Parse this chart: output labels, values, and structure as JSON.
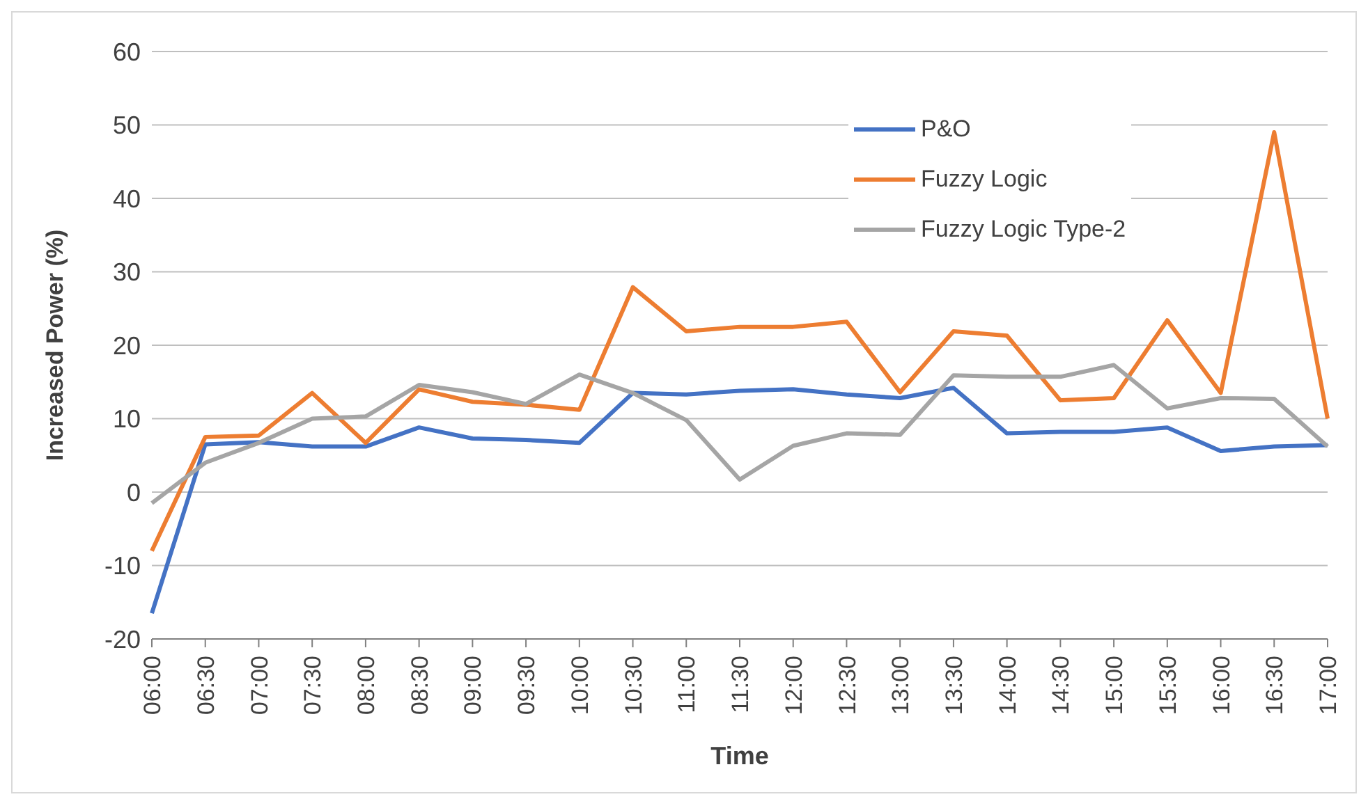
{
  "chart_data": {
    "type": "line",
    "xlabel": "Time",
    "ylabel": "Increased Power (%)",
    "categories": [
      "06:00",
      "06:30",
      "07:00",
      "07:30",
      "08:00",
      "08:30",
      "09:00",
      "09:30",
      "10:00",
      "10:30",
      "11:00",
      "11:30",
      "12:00",
      "12:30",
      "13:00",
      "13:30",
      "14:00",
      "14:30",
      "15:00",
      "15:30",
      "16:00",
      "16:30",
      "17:00"
    ],
    "series": [
      {
        "name": "P&O",
        "color": "#4472c4",
        "values": [
          -16.5,
          6.5,
          6.8,
          6.2,
          6.2,
          8.8,
          7.3,
          7.1,
          6.7,
          13.5,
          13.3,
          13.8,
          14,
          13.3,
          12.8,
          14.2,
          8,
          8.2,
          8.2,
          8.8,
          5.6,
          6.2,
          6.4
        ]
      },
      {
        "name": "Fuzzy Logic",
        "color": "#ed7d31",
        "values": [
          -8,
          7.5,
          7.7,
          13.5,
          6.7,
          14,
          12.3,
          11.9,
          11.2,
          27.9,
          21.9,
          22.5,
          22.5,
          23.2,
          13.6,
          21.9,
          21.3,
          12.5,
          12.8,
          23.4,
          13.5,
          49,
          10
        ]
      },
      {
        "name": "Fuzzy Logic Type-2",
        "color": "#a5a5a5",
        "values": [
          -1.5,
          4,
          6.7,
          10,
          10.3,
          14.6,
          13.6,
          12,
          16,
          13.5,
          9.8,
          1.7,
          6.3,
          8,
          7.8,
          15.9,
          15.7,
          15.7,
          17.3,
          11.4,
          12.8,
          12.7,
          6.2
        ]
      }
    ],
    "ylim": [
      -20,
      60
    ],
    "yticks": [
      -20,
      -10,
      0,
      10,
      20,
      30,
      40,
      50,
      60
    ],
    "grid": "y",
    "legend": "top right",
    "marker": "none",
    "line_style": "solid"
  }
}
